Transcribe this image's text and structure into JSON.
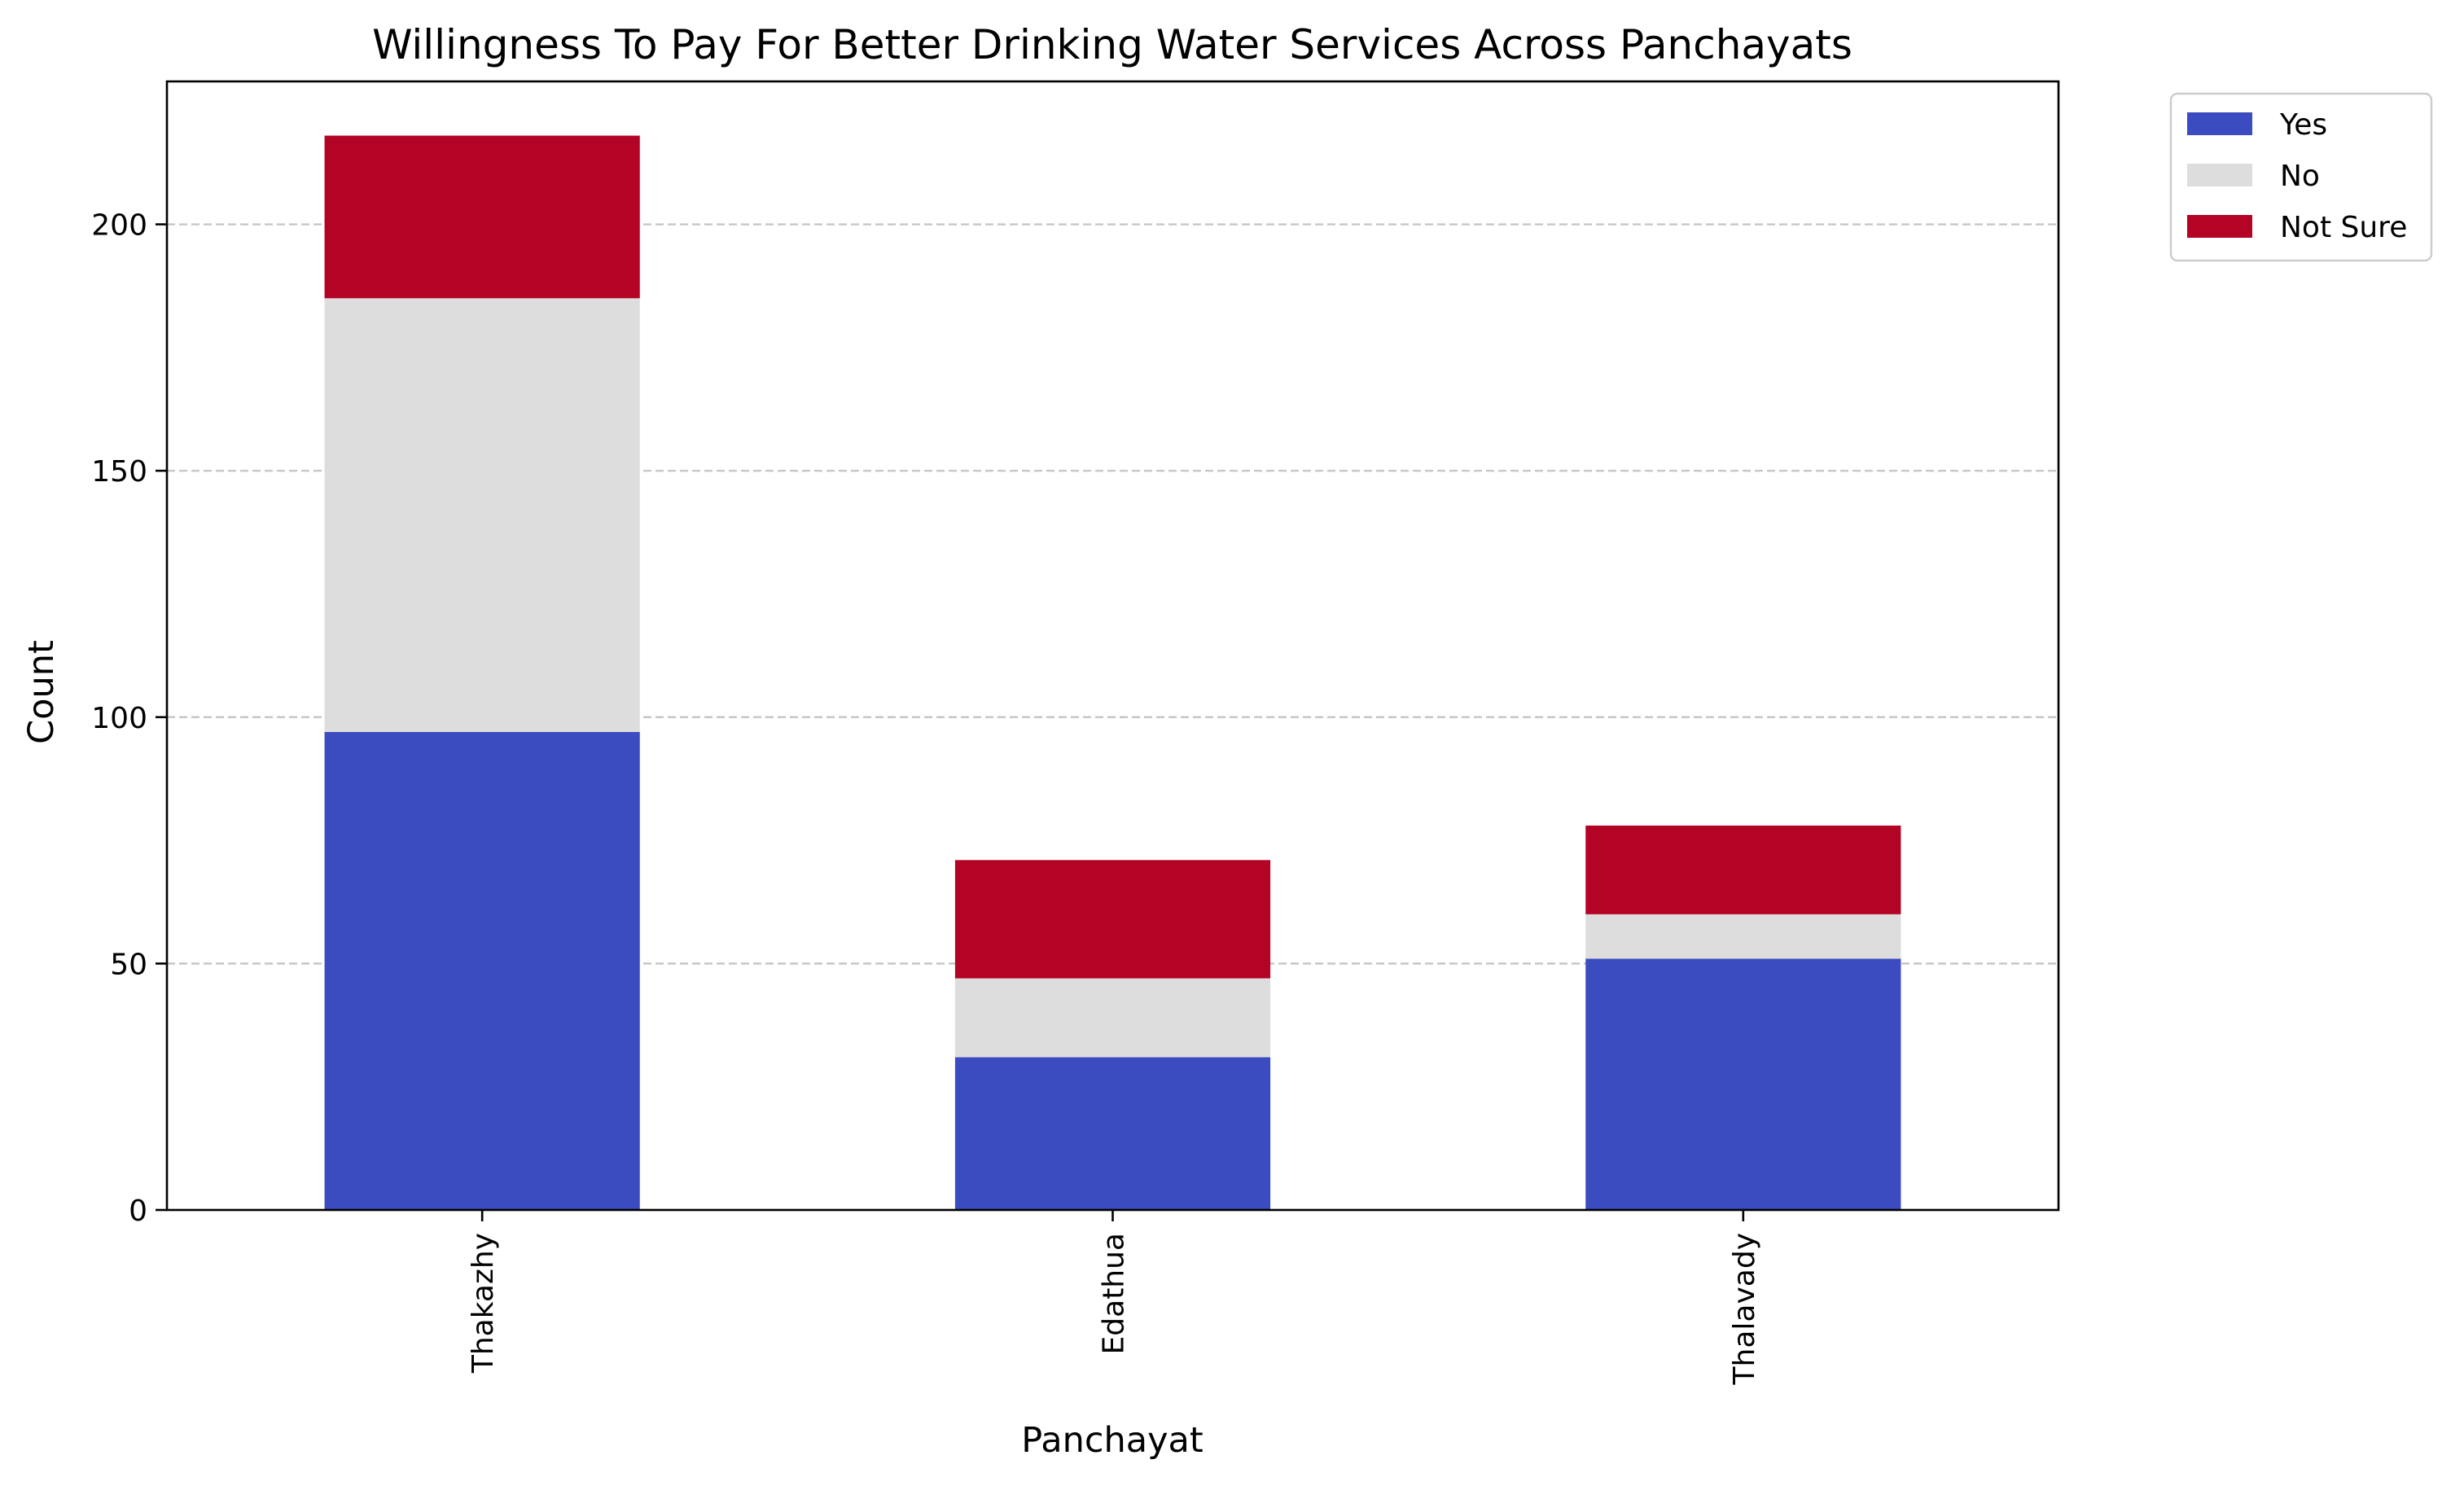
{
  "chart_data": {
    "type": "bar",
    "stacked": true,
    "title": "Willingness To Pay For Better Drinking Water Services Across Panchayats",
    "xlabel": "Panchayat",
    "ylabel": "Count",
    "categories": [
      "Thakazhy",
      "Edathua",
      "Thalavady"
    ],
    "series": [
      {
        "name": "Yes",
        "color": "#3b4cc0",
        "values": [
          97,
          31,
          51
        ]
      },
      {
        "name": "No",
        "color": "#dddddd",
        "values": [
          88,
          16,
          9
        ]
      },
      {
        "name": "Not Sure",
        "color": "#b40426",
        "values": [
          33,
          24,
          18
        ]
      }
    ],
    "ylim": [
      0,
      229
    ],
    "yticks": [
      0,
      50,
      100,
      150,
      200
    ],
    "grid": "y-dashed",
    "legend_position": "outside-top-right"
  }
}
